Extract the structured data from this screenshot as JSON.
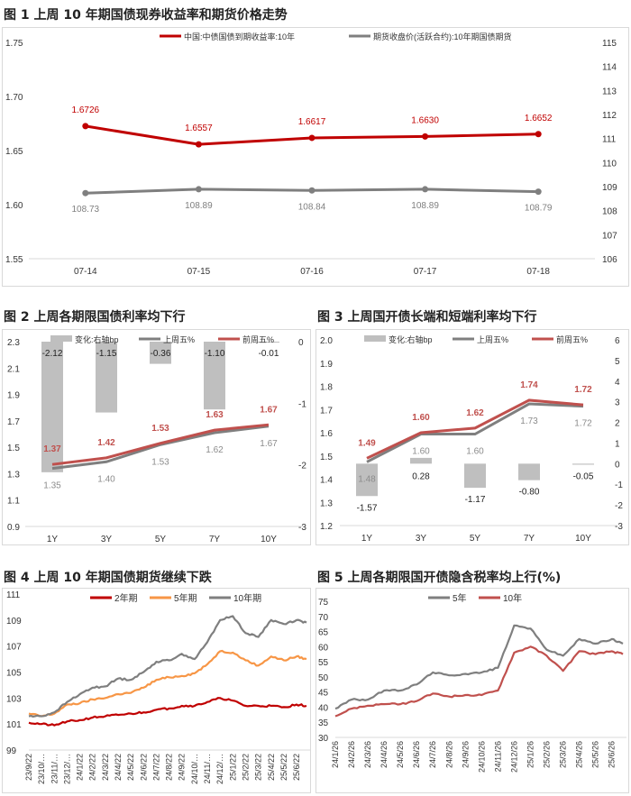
{
  "titles": [
    "图 1  上周 10 年期国债现券收益率和期货价格走势",
    "图 2  上周各期限国债利率均下行",
    "图 3  上周国开债长端和短端利率均下行",
    "图 4  上周 10 年期国债期货继续下跌",
    "图 5  上周各期限国开债隐含税率均上行(%)"
  ],
  "chart_data": [
    {
      "type": "line",
      "categories": [
        "07-14",
        "07-15",
        "07-16",
        "07-17",
        "07-18"
      ],
      "series": [
        {
          "name": "中国:中债国债到期收益率:10年",
          "values": [
            1.6726,
            1.6557,
            1.6617,
            1.663,
            1.6652
          ],
          "axis": "left",
          "color": "#c00000",
          "labels": [
            "1.6726",
            "1.6557",
            "1.6617",
            "1.6630",
            "1.6652"
          ]
        },
        {
          "name": "期货收盘价(活跃合约):10年期国债期货",
          "values": [
            108.73,
            108.89,
            108.84,
            108.89,
            108.79
          ],
          "axis": "right",
          "color": "#7f7f7f",
          "labels": [
            "108.73",
            "108.89",
            "108.84",
            "108.89",
            "108.79"
          ]
        }
      ],
      "ylim": [
        1.55,
        1.75
      ],
      "yticks": [
        "1.55",
        "1.60",
        "1.65",
        "1.70",
        "1.75"
      ],
      "y2lim": [
        106,
        115
      ],
      "y2ticks": [
        "106",
        "107",
        "108",
        "109",
        "110",
        "111",
        "112",
        "113",
        "114",
        "115"
      ],
      "legend": "top-center",
      "grid": false
    },
    {
      "type": "bar+line",
      "categories": [
        "1Y",
        "3Y",
        "5Y",
        "7Y",
        "10Y"
      ],
      "bars": {
        "name": "变化:右轴bp",
        "values": [
          -2.12,
          -1.15,
          -0.36,
          -1.1,
          -0.01
        ],
        "labels": [
          "-2.12",
          "-1.15",
          "-0.36",
          "-1.10",
          "-0.01"
        ],
        "color": "#bfbfbf"
      },
      "series": [
        {
          "name": "上周五%",
          "values": [
            1.35,
            1.4,
            1.53,
            1.62,
            1.67
          ],
          "labels": [
            "1.35",
            "1.40",
            "1.53",
            "1.62",
            "1.67"
          ],
          "color": "#7f7f7f"
        },
        {
          "name": "前周五%",
          "values": [
            1.37,
            1.42,
            1.53,
            1.63,
            1.67
          ],
          "labels": [
            "1.37",
            "1.42",
            "1.53",
            "1.63",
            "1.67"
          ],
          "color": "#c0504d"
        }
      ],
      "ylim": [
        0.9,
        2.3
      ],
      "yticks": [
        "0.9",
        "1.1",
        "1.3",
        "1.5",
        "1.7",
        "1.9",
        "2.1",
        "2.3"
      ],
      "y2lim": [
        -3,
        0
      ],
      "y2ticks": [
        "-3",
        "-2",
        "-1",
        "0"
      ],
      "legend": "top",
      "grid": false
    },
    {
      "type": "bar+line",
      "categories": [
        "1Y",
        "3Y",
        "5Y",
        "7Y",
        "10Y"
      ],
      "bars": {
        "name": "变化:右轴bp",
        "values": [
          -1.57,
          0.28,
          -1.17,
          -0.8,
          -0.05
        ],
        "labels": [
          "-1.57",
          "0.28",
          "-1.17",
          "-0.80",
          "-0.05"
        ],
        "color": "#bfbfbf"
      },
      "series": [
        {
          "name": "上周五%",
          "values": [
            1.48,
            1.6,
            1.6,
            1.73,
            1.72
          ],
          "labels": [
            "1.48",
            "1.60",
            "1.60",
            "1.73",
            "1.72"
          ],
          "color": "#7f7f7f"
        },
        {
          "name": "前周五%",
          "values": [
            1.49,
            1.6,
            1.62,
            1.74,
            1.72
          ],
          "labels": [
            "1.49",
            "1.60",
            "1.62",
            "1.74",
            "1.72"
          ],
          "color": "#c0504d"
        }
      ],
      "ylim": [
        1.2,
        2.0
      ],
      "yticks": [
        "1.2",
        "1.3",
        "1.4",
        "1.5",
        "1.6",
        "1.7",
        "1.8",
        "1.9",
        "2.0"
      ],
      "y2lim": [
        -3,
        6
      ],
      "y2ticks": [
        "-3",
        "-2",
        "-1",
        "0",
        "1",
        "2",
        "3",
        "4",
        "5",
        "6"
      ],
      "legend": "top",
      "grid": false
    },
    {
      "type": "line",
      "x": [
        "23/9/22",
        "23/10/…",
        "23/11/…",
        "23/12/…",
        "24/1/22",
        "24/2/22",
        "24/3/22",
        "24/4/22",
        "24/5/22",
        "24/6/22",
        "24/7/22",
        "24/8/22",
        "24/9/22",
        "24/10/…",
        "24/11/…",
        "24/12/…",
        "25/1/22",
        "25/2/22",
        "25/3/22",
        "25/4/22",
        "25/5/22",
        "25/6/22"
      ],
      "series": [
        {
          "name": "2年期",
          "color": "#c00000",
          "values": [
            101.1,
            101.0,
            100.9,
            101.2,
            101.3,
            101.5,
            101.6,
            101.7,
            101.8,
            101.9,
            102.1,
            102.2,
            102.4,
            102.4,
            102.7,
            103.0,
            102.8,
            102.4,
            102.4,
            102.4,
            102.3,
            102.5
          ],
          "last": 102.4
        },
        {
          "name": "5年期",
          "color": "#f79646",
          "values": [
            101.8,
            101.6,
            101.8,
            102.5,
            102.6,
            102.9,
            103.0,
            103.3,
            103.4,
            103.8,
            104.4,
            104.6,
            104.7,
            104.9,
            105.6,
            106.6,
            106.5,
            105.9,
            105.5,
            106.2,
            105.9,
            106.2
          ],
          "last": 106.0
        },
        {
          "name": "10年期",
          "color": "#7f7f7f",
          "values": [
            101.6,
            101.6,
            101.9,
            102.7,
            103.3,
            103.8,
            103.9,
            104.5,
            104.4,
            105.0,
            105.8,
            105.9,
            106.4,
            106.0,
            107.3,
            109.0,
            109.3,
            108.0,
            107.7,
            109.0,
            108.7,
            109.0
          ],
          "last": 108.8
        }
      ],
      "ylim": [
        99,
        111
      ],
      "yticks": [
        "99",
        "101",
        "103",
        "105",
        "107",
        "109",
        "111"
      ],
      "legend": "top",
      "grid": false
    },
    {
      "type": "line",
      "x": [
        "24/1/26",
        "24/2/26",
        "24/3/26",
        "24/4/26",
        "24/5/26",
        "24/6/26",
        "24/7/26",
        "24/8/26",
        "24/9/26",
        "24/10/26",
        "24/11/26",
        "24/12/26",
        "25/1/26",
        "25/2/26",
        "25/3/26",
        "25/4/26",
        "25/5/26",
        "25/6/26"
      ],
      "series": [
        {
          "name": "5年",
          "color": "#7f7f7f",
          "values": [
            39.5,
            42.5,
            42.5,
            45.5,
            45.5,
            47.5,
            51.5,
            50.5,
            51,
            51.5,
            53,
            67,
            66,
            59,
            57,
            62.5,
            61,
            62.5
          ],
          "last": 61
        },
        {
          "name": "10年",
          "color": "#c0504d",
          "values": [
            37,
            39.5,
            40.5,
            41,
            41,
            42,
            44.5,
            43.5,
            44,
            44,
            45.5,
            58,
            60,
            57,
            52,
            58.5,
            57.5,
            58.5
          ],
          "last": 57.5
        }
      ],
      "ylim": [
        30,
        75
      ],
      "yticks": [
        "30",
        "35",
        "40",
        "45",
        "50",
        "55",
        "60",
        "65",
        "70",
        "75"
      ],
      "legend": "top",
      "grid": false
    }
  ]
}
